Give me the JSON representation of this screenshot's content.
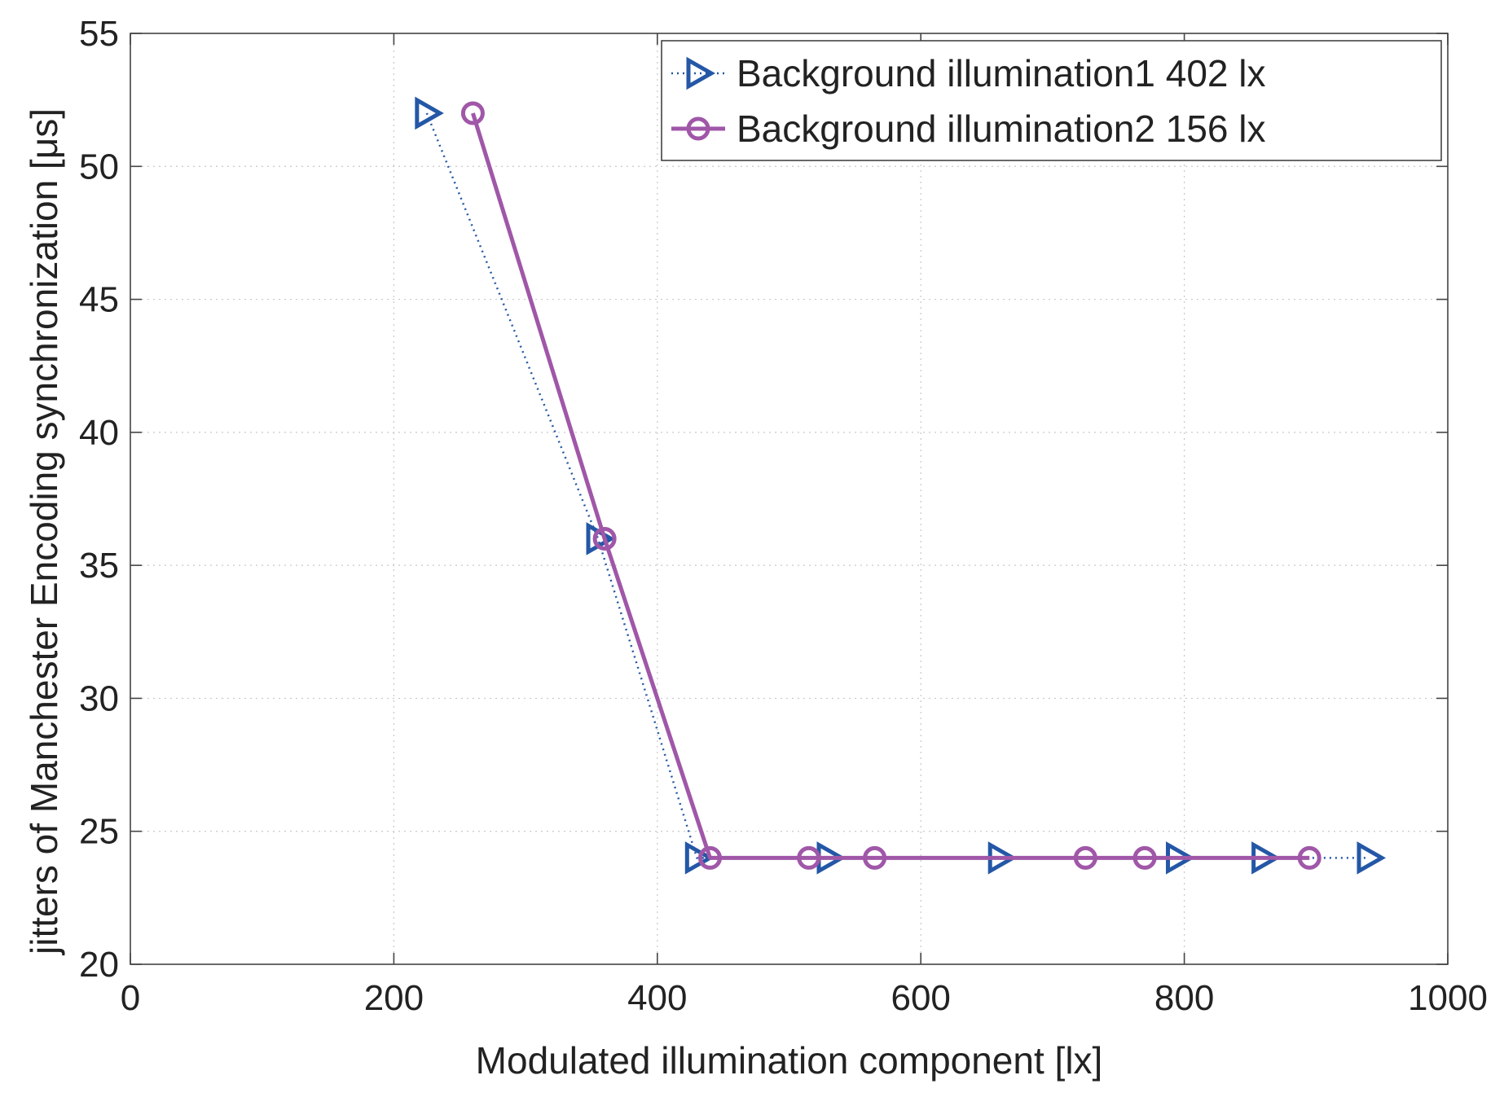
{
  "chart_data": {
    "type": "line",
    "xlabel": "Modulated illumination component [lx]",
    "ylabel": "jitters of Manchester Encoding synchronization [μs]",
    "xlim": [
      0,
      1000
    ],
    "ylim": [
      20,
      55
    ],
    "xticks": [
      "0",
      "200",
      "400",
      "600",
      "800",
      "1000"
    ],
    "yticks": [
      "20",
      "25",
      "30",
      "35",
      "40",
      "45",
      "50",
      "55"
    ],
    "grid": true,
    "legend_position": "top-right",
    "series": [
      {
        "name": "Background illumination1 402 lx",
        "color": "#2457a6",
        "line_style": "dotted",
        "marker": "triangle-right",
        "x": [
          225,
          355,
          430,
          530,
          660,
          795,
          860,
          940
        ],
        "y": [
          52,
          36,
          24,
          24,
          24,
          24,
          24,
          24
        ]
      },
      {
        "name": "Background illumination2 156 lx",
        "color": "#a057a8",
        "line_style": "solid",
        "marker": "circle",
        "x": [
          260,
          360,
          440,
          515,
          565,
          725,
          770,
          895
        ],
        "y": [
          52,
          36,
          24,
          24,
          24,
          24,
          24,
          24
        ]
      }
    ]
  }
}
